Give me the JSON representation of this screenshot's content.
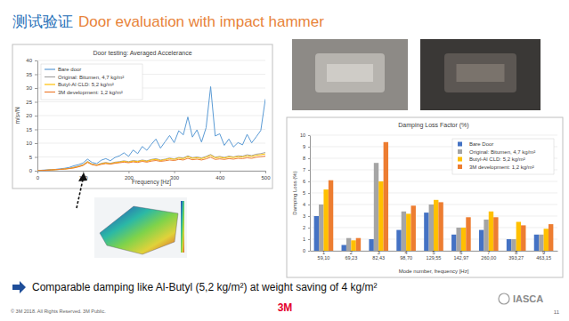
{
  "slide": {
    "title_cn": "测试验证",
    "title_en": "Door evaluation with impact hammer",
    "conclusion": "Comparable damping like Al-Butyl (5,2 kg/m²) at weight saving of 4 kg/m²",
    "footer": "© 3M 2018. All Rights Reserved.  3M Public.",
    "logo": "3M",
    "page": "11",
    "watermark": "IASCA"
  },
  "chart_data": [
    {
      "type": "line",
      "title": "Door testing: Averaged Accelerance",
      "x_label": "Frequency [Hz]",
      "y_label": "m/s²/N",
      "x": [
        0,
        10,
        20,
        30,
        40,
        50,
        60,
        70,
        80,
        90,
        100,
        110,
        120,
        130,
        140,
        150,
        160,
        170,
        180,
        190,
        200,
        210,
        220,
        230,
        240,
        250,
        260,
        270,
        280,
        290,
        300,
        310,
        320,
        330,
        340,
        350,
        360,
        370,
        380,
        390,
        400,
        410,
        420,
        430,
        440,
        450,
        460,
        470,
        480,
        490,
        500
      ],
      "xlim": [
        0,
        500
      ],
      "xticks": [
        0,
        100,
        200,
        300,
        400,
        500
      ],
      "ylim": [
        0,
        40
      ],
      "yticks": [
        0,
        5,
        10,
        15,
        20,
        25,
        30,
        35,
        40
      ],
      "grid": true,
      "legend": "upper left",
      "series": [
        {
          "name": "Bare door",
          "color": "#5b9bd5",
          "values": [
            0,
            0.2,
            0.3,
            0.4,
            0.5,
            0.7,
            0.9,
            1.2,
            1.8,
            2.2,
            2.8,
            4.2,
            3.0,
            2.6,
            3.8,
            4.4,
            3.6,
            4.8,
            5.4,
            6.5,
            5.2,
            7.5,
            6.2,
            8.8,
            7.4,
            9.6,
            11.5,
            8.2,
            10.5,
            12.8,
            10.2,
            14.5,
            13,
            19.5,
            12.2,
            14.8,
            10.4,
            15.6,
            30.5,
            12.6,
            13.4,
            9.2,
            11.5,
            8.6,
            10.2,
            9.4,
            13.2,
            10.1,
            12.3,
            14.6,
            26
          ]
        },
        {
          "name": "Original: Bitumen, 4,7 kg/m²",
          "color": "#a5a5a5",
          "values": [
            0,
            0.1,
            0.2,
            0.3,
            0.4,
            0.5,
            0.7,
            0.9,
            1.3,
            1.7,
            2.2,
            3.4,
            2.4,
            2.1,
            2.7,
            3.0,
            2.7,
            3.1,
            3.3,
            3.6,
            3.3,
            3.7,
            3.5,
            3.9,
            3.6,
            4.1,
            4.4,
            3.9,
            4.2,
            4.6,
            4.3,
            4.8,
            4.6,
            5.4,
            4.7,
            5.0,
            4.6,
            5.2,
            5.9,
            4.9,
            5.2,
            4.8,
            5.3,
            5.0,
            5.4,
            5.3,
            5.8,
            5.5,
            6.0,
            6.2,
            6.6
          ]
        },
        {
          "name": "Butyl-Al CLD: 5,2 kg/m²",
          "color": "#ffc000",
          "values": [
            0,
            0.1,
            0.2,
            0.3,
            0.4,
            0.5,
            0.6,
            0.8,
            1.1,
            1.5,
            2.0,
            3.2,
            2.3,
            2.0,
            2.5,
            2.8,
            2.5,
            2.9,
            3.1,
            3.4,
            3.1,
            3.5,
            3.3,
            3.7,
            3.4,
            3.9,
            4.1,
            3.7,
            4.0,
            4.4,
            4.1,
            4.6,
            4.4,
            5.1,
            4.5,
            4.7,
            4.4,
            4.9,
            5.6,
            4.7,
            4.9,
            4.6,
            5.0,
            4.8,
            5.1,
            5.0,
            5.4,
            5.2,
            5.6,
            5.8,
            6.1
          ]
        },
        {
          "name": "3M development: 1,2 kg/m²",
          "color": "#ed7d31",
          "values": [
            0,
            0.1,
            0.2,
            0.3,
            0.4,
            0.5,
            0.6,
            0.8,
            1.0,
            1.4,
            1.9,
            3.0,
            2.2,
            1.9,
            2.3,
            2.6,
            2.4,
            2.7,
            2.9,
            3.1,
            2.9,
            3.2,
            3.0,
            3.4,
            3.1,
            3.5,
            3.7,
            3.4,
            3.6,
            3.9,
            3.7,
            4.1,
            3.9,
            4.5,
            4.0,
            4.2,
            3.9,
            4.3,
            4.9,
            4.1,
            4.3,
            4.1,
            4.4,
            4.2,
            4.5,
            4.4,
            4.7,
            4.5,
            4.9,
            5.1,
            5.3
          ]
        }
      ]
    },
    {
      "type": "bar",
      "title": "Damping Loss Factor (%)",
      "x_label": "Mode number, frequency [Hz]",
      "y_label": "Damping Loss (%)",
      "categories": [
        "1\n59,10",
        "2\n69,23",
        "3\n82,43",
        "4\n98,70",
        "5\n129,55",
        "6\n142,97",
        "7\n260,00",
        "8\n393,27",
        "9\n463,15"
      ],
      "ylim": [
        0,
        10
      ],
      "yticks": [
        0,
        1,
        2,
        3,
        4,
        5,
        6,
        7,
        8,
        9,
        10
      ],
      "grid": true,
      "legend": "upper right",
      "series": [
        {
          "name": "Bare Door",
          "color": "#4472c4",
          "values": [
            3.0,
            0.5,
            1.0,
            1.8,
            3.3,
            1.4,
            1.8,
            1.0,
            1.4
          ]
        },
        {
          "name": "Original: Bitumen, 4,7 kg/m²",
          "color": "#a5a5a5",
          "values": [
            4.0,
            1.1,
            7.6,
            3.4,
            4.0,
            2.0,
            2.7,
            1.0,
            1.4
          ]
        },
        {
          "name": "Butyl-Al CLD: 5,2 kg/m²",
          "color": "#ffc000",
          "values": [
            5.3,
            0.9,
            6.0,
            3.2,
            4.4,
            2.0,
            3.4,
            2.5,
            1.9
          ]
        },
        {
          "name": "3M development: 1,2 kg/m²",
          "color": "#ed7d31",
          "values": [
            6.1,
            1.1,
            9.4,
            3.9,
            4.2,
            2.9,
            2.9,
            2.2,
            2.3
          ]
        }
      ]
    }
  ]
}
